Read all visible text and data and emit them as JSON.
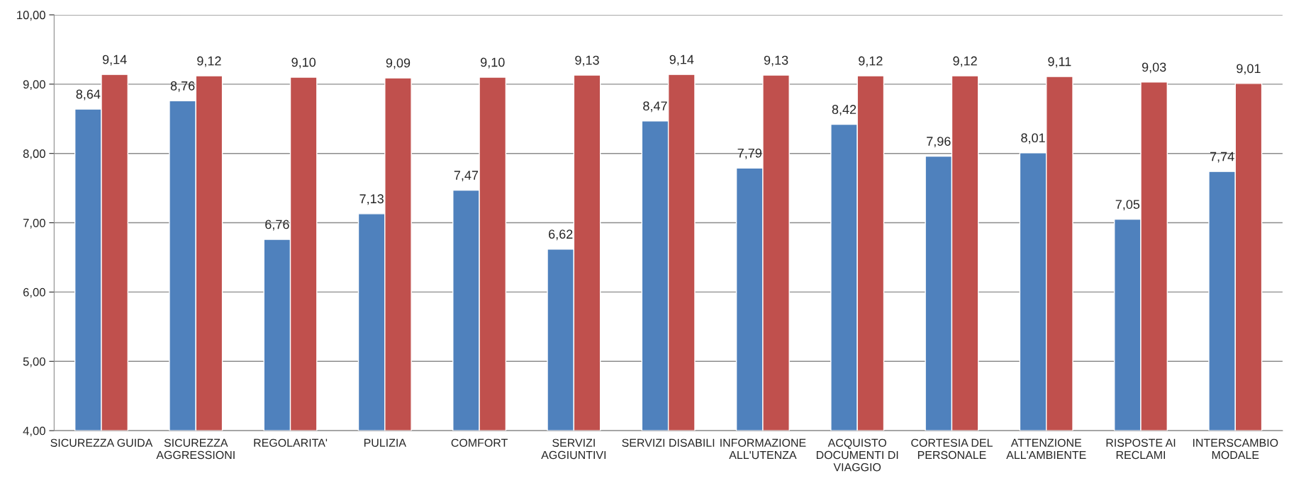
{
  "chart_data": {
    "type": "bar",
    "categories": [
      "SICUREZZA GUIDA",
      "SICUREZZA\nAGGRESSIONI",
      "REGOLARITA'",
      "PULIZIA",
      "COMFORT",
      "SERVIZI\nAGGIUNTIVI",
      "SERVIZI DISABILI",
      "INFORMAZIONE\nALL'UTENZA",
      "ACQUISTO\nDOCUMENTI DI\nVIAGGIO",
      "CORTESIA DEL\nPERSONALE",
      "ATTENZIONE\nALL'AMBIENTE",
      "RISPOSTE AI\nRECLAMI",
      "INTERSCAMBIO\nMODALE"
    ],
    "series": [
      {
        "color": "#4f81bd",
        "values": [
          8.64,
          8.76,
          6.76,
          7.13,
          7.47,
          6.62,
          8.47,
          7.79,
          8.42,
          7.96,
          8.01,
          7.05,
          7.74
        ],
        "value_labels": [
          "8,64",
          "8,76",
          "6,76",
          "7,13",
          "7,47",
          "6,62",
          "8,47",
          "7,79",
          "8,42",
          "7,96",
          "8,01",
          "7,05",
          "7,74"
        ]
      },
      {
        "color": "#c0504d",
        "values": [
          9.14,
          9.12,
          9.1,
          9.09,
          9.1,
          9.13,
          9.14,
          9.13,
          9.12,
          9.12,
          9.11,
          9.03,
          9.01
        ],
        "value_labels": [
          "9,14",
          "9,12",
          "9,10",
          "9,09",
          "9,10",
          "9,13",
          "9,14",
          "9,13",
          "9,12",
          "9,12",
          "9,11",
          "9,03",
          "9,01"
        ]
      }
    ],
    "ylim": [
      4,
      10
    ],
    "yticks": [
      {
        "value": 4,
        "label": "4,00"
      },
      {
        "value": 5,
        "label": "5,00"
      },
      {
        "value": 6,
        "label": "6,00"
      },
      {
        "value": 7,
        "label": "7,00"
      },
      {
        "value": 8,
        "label": "8,00"
      },
      {
        "value": 9,
        "label": "9,00"
      },
      {
        "value": 10,
        "label": "10,00"
      }
    ],
    "grid": "y",
    "legend": false
  }
}
